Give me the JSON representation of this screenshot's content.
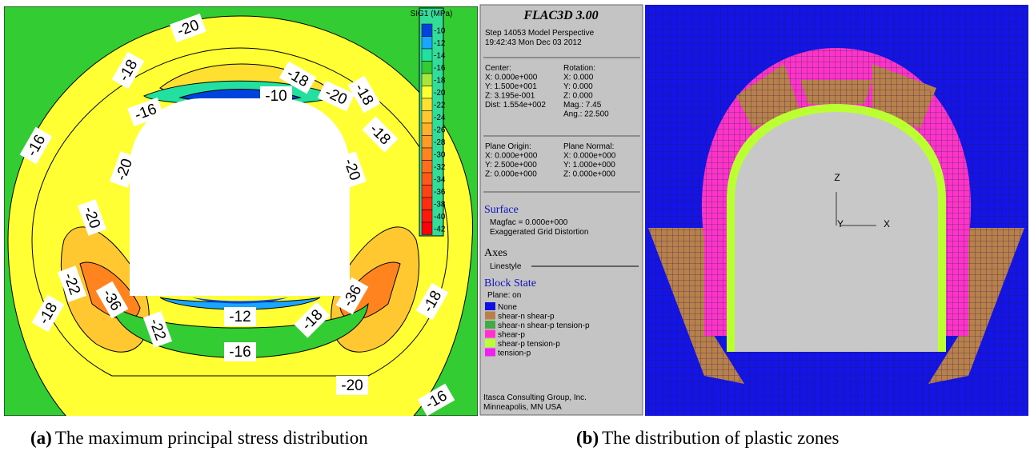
{
  "panel_a": {
    "legend_title": "SIG1 (MPa)",
    "legend_levels": [
      -10,
      -12,
      -14,
      -16,
      -18,
      -20,
      -22,
      -24,
      -26,
      -28,
      -30,
      -32,
      -34,
      -36,
      -38,
      -40,
      -42
    ],
    "legend_colors": [
      "#0044dd",
      "#1aa6ff",
      "#22e0a0",
      "#33cc33",
      "#a8e63a",
      "#ffff33",
      "#ffe030",
      "#ffc830",
      "#ffb028",
      "#ff9a24",
      "#ff8420",
      "#ff6e1c",
      "#ff5818",
      "#ff4214",
      "#ff2c10",
      "#ff160c",
      "#ff0008"
    ],
    "contour_labels": [
      -20,
      -18,
      -18,
      -20,
      -18,
      -10,
      -16,
      -18,
      -16,
      -20,
      -20,
      -20,
      -22,
      -36,
      -36,
      -22,
      -18,
      -18,
      -18,
      -12,
      -16,
      -20,
      -16
    ]
  },
  "info_panel": {
    "title": "FLAC3D 3.00",
    "header_lines": [
      "Step 14053  Model Perspective",
      "19:42:43 Mon Dec 03 2012"
    ],
    "view_left": [
      "Center:",
      "X: 0.000e+000",
      "Y: 1.500e+001",
      "Z: 3.195e-001",
      "Dist: 1.554e+002"
    ],
    "view_right": [
      "Rotation:",
      "X:  0.000",
      "Y:  0.000",
      "Z:  0.000",
      "Mag.:    7.45",
      "Ang.:  22.500"
    ],
    "plane_left": [
      "Plane Origin:",
      "X: 0.000e+000",
      "Y: 2.500e+000",
      "Z: 0.000e+000"
    ],
    "plane_right": [
      "Plane Normal:",
      "X: 0.000e+000",
      "Y: 1.000e+000",
      "Z: 0.000e+000"
    ],
    "surface_heading": "Surface",
    "surface_lines": [
      "Magfac =  0.000e+000",
      "Exaggerated Grid Distortion"
    ],
    "axes_heading": "Axes",
    "axes_line": "Linestyle",
    "block_heading": "Block State",
    "block_plane": "Plane: on",
    "block_legend": [
      {
        "label": "None",
        "color": "#1010e0"
      },
      {
        "label": "shear-n shear-p",
        "color": "#b8804a"
      },
      {
        "label": "shear-n shear-p tension-p",
        "color": "#44aa44"
      },
      {
        "label": "shear-p",
        "color": "#ff33cc"
      },
      {
        "label": "shear-p tension-p",
        "color": "#bbff33"
      },
      {
        "label": "tension-p",
        "color": "#ee22ee"
      }
    ],
    "footer": [
      "Itasca Consulting Group, Inc.",
      "Minneapolis, MN  USA"
    ]
  },
  "panel_b": {
    "axis_z": "Z",
    "axis_y": "Y",
    "axis_x": "X"
  },
  "captions": [
    {
      "tag": "(a)",
      "text": "The maximum principal stress distribution"
    },
    {
      "tag": "(b)",
      "text": "The distribution of plastic zones"
    }
  ]
}
